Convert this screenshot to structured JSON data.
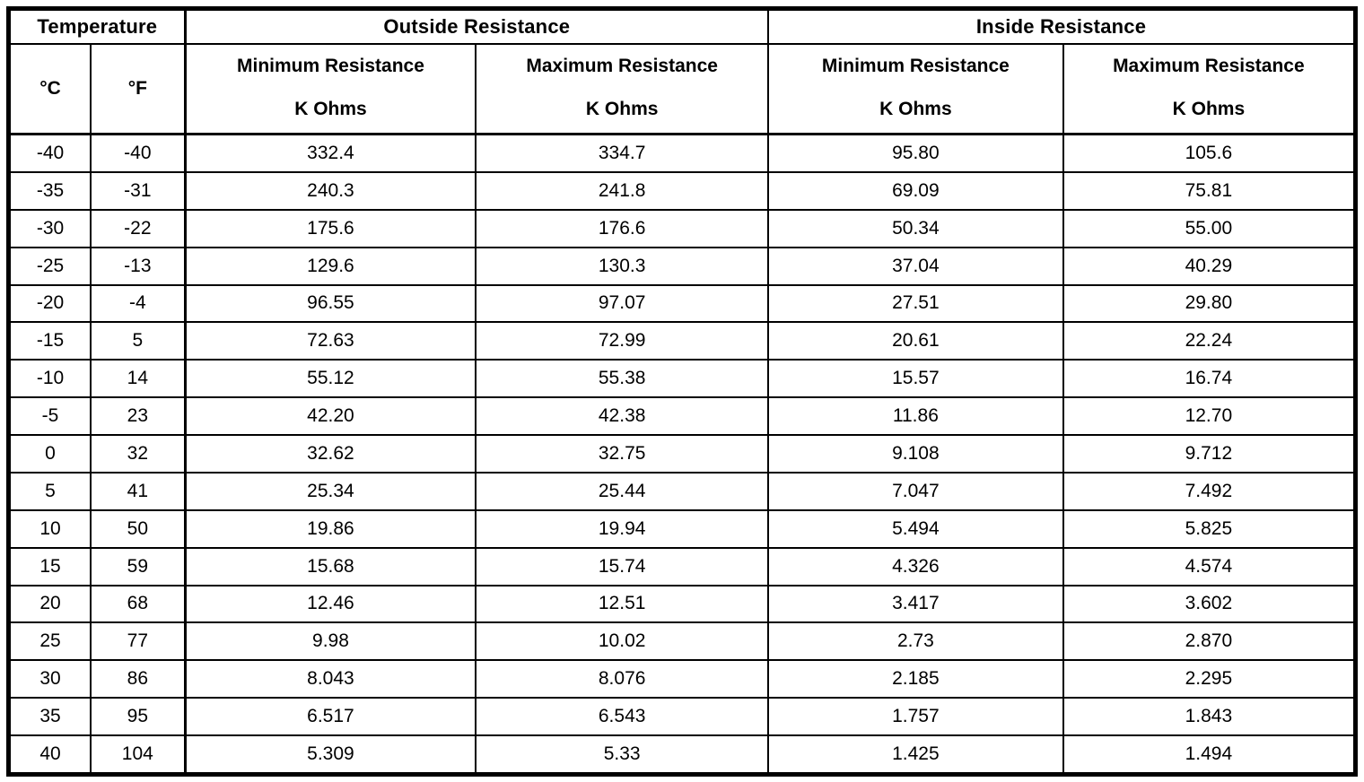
{
  "page": {
    "background_color": "#ffffff",
    "text_color": "#000000",
    "border_color": "#000000"
  },
  "table": {
    "groups": {
      "temperature": "Temperature",
      "outside": "Outside Resistance",
      "inside": "Inside Resistance"
    },
    "subheader": {
      "celsius": "°C",
      "fahrenheit": "°F",
      "minimum": "Minimum Resistance",
      "maximum": "Maximum Resistance",
      "unit": "K Ohms"
    },
    "columns": [
      "c",
      "f",
      "out_min",
      "out_max",
      "in_min",
      "in_max"
    ],
    "rows": [
      {
        "c": "-40",
        "f": "-40",
        "out_min": "332.4",
        "out_max": "334.7",
        "in_min": "95.80",
        "in_max": "105.6"
      },
      {
        "c": "-35",
        "f": "-31",
        "out_min": "240.3",
        "out_max": "241.8",
        "in_min": "69.09",
        "in_max": "75.81"
      },
      {
        "c": "-30",
        "f": "-22",
        "out_min": "175.6",
        "out_max": "176.6",
        "in_min": "50.34",
        "in_max": "55.00"
      },
      {
        "c": "-25",
        "f": "-13",
        "out_min": "129.6",
        "out_max": "130.3",
        "in_min": "37.04",
        "in_max": "40.29"
      },
      {
        "c": "-20",
        "f": "-4",
        "out_min": "96.55",
        "out_max": "97.07",
        "in_min": "27.51",
        "in_max": "29.80"
      },
      {
        "c": "-15",
        "f": "5",
        "out_min": "72.63",
        "out_max": "72.99",
        "in_min": "20.61",
        "in_max": "22.24"
      },
      {
        "c": "-10",
        "f": "14",
        "out_min": "55.12",
        "out_max": "55.38",
        "in_min": "15.57",
        "in_max": "16.74"
      },
      {
        "c": "-5",
        "f": "23",
        "out_min": "42.20",
        "out_max": "42.38",
        "in_min": "11.86",
        "in_max": "12.70"
      },
      {
        "c": "0",
        "f": "32",
        "out_min": "32.62",
        "out_max": "32.75",
        "in_min": "9.108",
        "in_max": "9.712"
      },
      {
        "c": "5",
        "f": "41",
        "out_min": "25.34",
        "out_max": "25.44",
        "in_min": "7.047",
        "in_max": "7.492"
      },
      {
        "c": "10",
        "f": "50",
        "out_min": "19.86",
        "out_max": "19.94",
        "in_min": "5.494",
        "in_max": "5.825"
      },
      {
        "c": "15",
        "f": "59",
        "out_min": "15.68",
        "out_max": "15.74",
        "in_min": "4.326",
        "in_max": "4.574"
      },
      {
        "c": "20",
        "f": "68",
        "out_min": "12.46",
        "out_max": "12.51",
        "in_min": "3.417",
        "in_max": "3.602"
      },
      {
        "c": "25",
        "f": "77",
        "out_min": "9.98",
        "out_max": "10.02",
        "in_min": "2.73",
        "in_max": "2.870"
      },
      {
        "c": "30",
        "f": "86",
        "out_min": "8.043",
        "out_max": "8.076",
        "in_min": "2.185",
        "in_max": "2.295"
      },
      {
        "c": "35",
        "f": "95",
        "out_min": "6.517",
        "out_max": "6.543",
        "in_min": "1.757",
        "in_max": "1.843"
      },
      {
        "c": "40",
        "f": "104",
        "out_min": "5.309",
        "out_max": "5.33",
        "in_min": "1.425",
        "in_max": "1.494"
      }
    ]
  }
}
